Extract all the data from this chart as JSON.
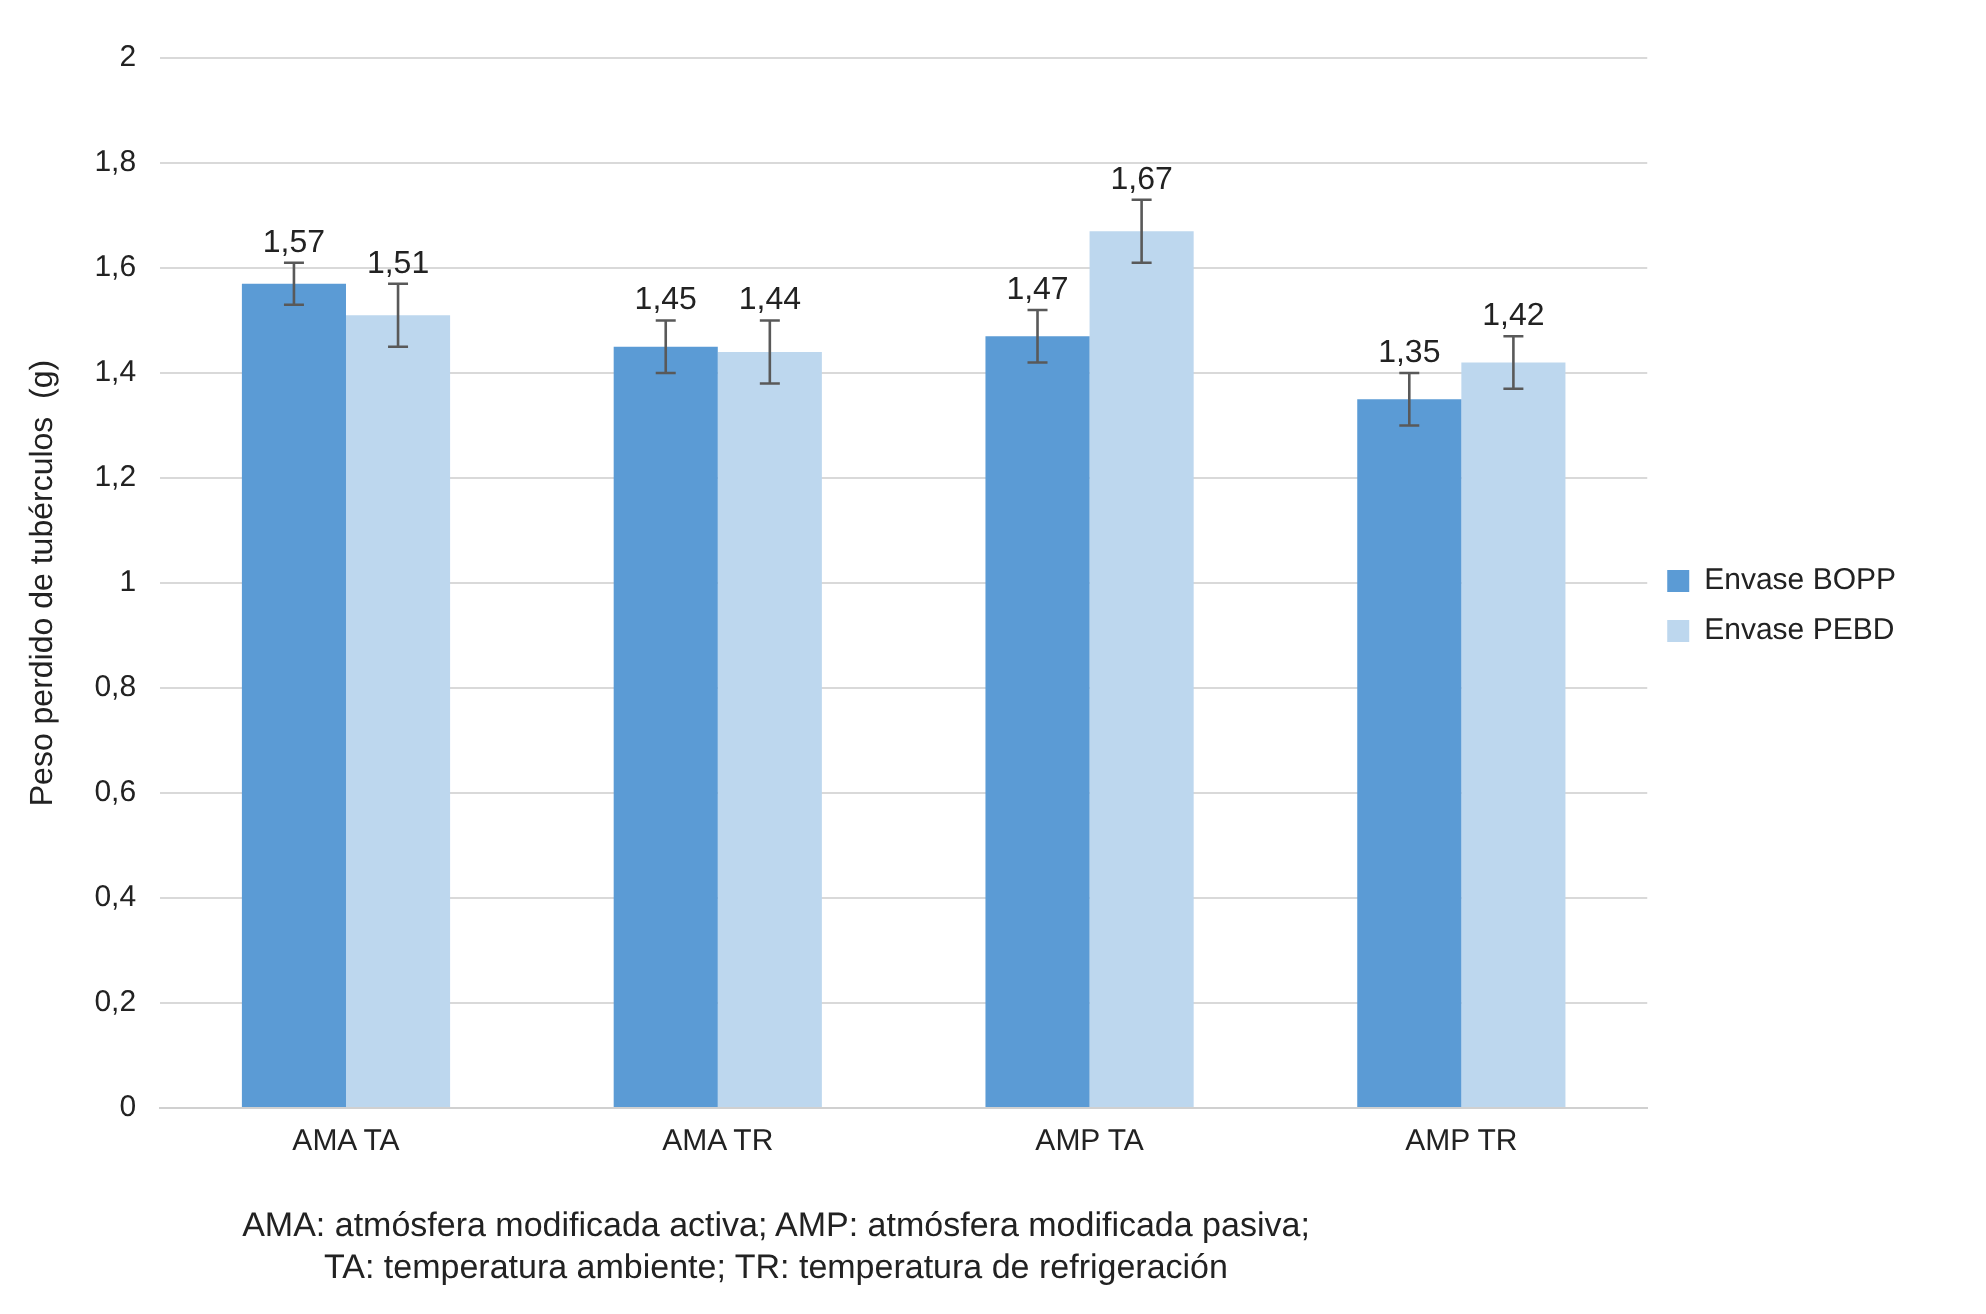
{
  "chart_data": {
    "type": "bar",
    "ylabel": "Peso perdido de tubérculos  (g)",
    "categories": [
      "AMA TA",
      "AMA TR",
      "AMP TA",
      "AMP TR"
    ],
    "series": [
      {
        "name": "Envase BOPP",
        "color": "#5b9bd5",
        "values": [
          1.57,
          1.45,
          1.47,
          1.35
        ],
        "errors": [
          0.04,
          0.05,
          0.05,
          0.05
        ],
        "value_labels": [
          "1,57",
          "1,45",
          "1,47",
          "1,35"
        ]
      },
      {
        "name": "Envase PEBD",
        "color": "#bdd7ee",
        "values": [
          1.51,
          1.44,
          1.67,
          1.42
        ],
        "errors": [
          0.06,
          0.06,
          0.06,
          0.05
        ],
        "value_labels": [
          "1,51",
          "1,44",
          "1,67",
          "1,42"
        ]
      }
    ],
    "ylim": [
      0,
      2
    ],
    "yticks": [
      0,
      {
        "value": 0.2,
        "label": "0,2"
      },
      {
        "value": 0.4,
        "label": "0,4"
      },
      {
        "value": 0.6,
        "label": "0,6"
      },
      {
        "value": 0.8,
        "label": "0,8"
      },
      1,
      {
        "value": 1.2,
        "label": "1,2"
      },
      {
        "value": 1.4,
        "label": "1,4"
      },
      {
        "value": 1.6,
        "label": "1,6"
      },
      {
        "value": 1.8,
        "label": "1,8"
      },
      2
    ],
    "grid": "y",
    "legend": "right",
    "annotations": [
      "AMA: atmósfera modificada activa; AMP: atmósfera modificada pasiva;",
      "TA: temperatura ambiente; TR: temperatura de refrigeración"
    ]
  }
}
